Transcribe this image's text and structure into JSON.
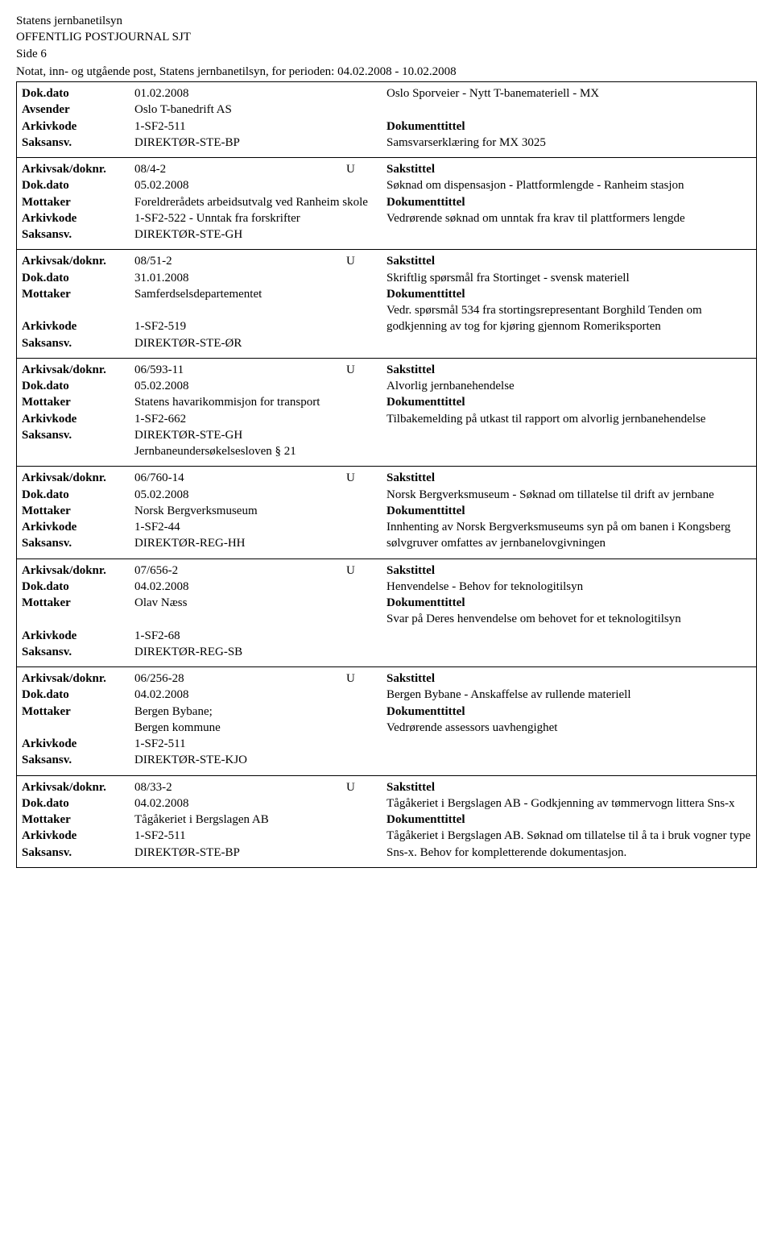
{
  "header": {
    "org": "Statens jernbanetilsyn",
    "title": "OFFENTLIG POSTJOURNAL SJT",
    "page": "Side 6",
    "subtitle": "Notat, inn- og utgående post, Statens jernbanetilsyn, for perioden: 04.02.2008 - 10.02.2008"
  },
  "labels": {
    "dokdato": "Dok.dato",
    "avsender": "Avsender",
    "mottaker": "Mottaker",
    "arkivkode": "Arkivkode",
    "saksansv": "Saksansv.",
    "arkivsak": "Arkivsak/doknr.",
    "sakstittel": "Sakstittel",
    "dokumenttittel": "Dokumenttittel"
  },
  "entries": [
    {
      "arkivsak": "",
      "dir": "",
      "dokdato": "01.02.2008",
      "party_label": "Avsender",
      "party": "Oslo T-banedrift AS",
      "arkivkode": "1-SF2-511",
      "saksansv": "DIREKTØR-STE-BP",
      "sakstittel": "Oslo Sporveier - Nytt T-banemateriell - MX",
      "dokumenttittel": "Samsvarserklæring for MX 3025",
      "header_style": true
    },
    {
      "arkivsak": "08/4-2",
      "dir": "U",
      "dokdato": "05.02.2008",
      "party_label": "Mottaker",
      "party": "Foreldrerådets arbeidsutvalg ved Ranheim skole",
      "arkivkode": "1-SF2-522 - Unntak fra forskrifter",
      "saksansv": "DIREKTØR-STE-GH",
      "sakstittel": "Søknad om dispensasjon - Plattformlengde - Ranheim stasjon",
      "dokumenttittel": "Vedrørende søknad om unntak fra krav til plattformers lengde"
    },
    {
      "arkivsak": "08/51-2",
      "dir": "U",
      "dokdato": "31.01.2008",
      "party_label": "Mottaker",
      "party": "Samferdselsdepartementet",
      "arkivkode": "1-SF2-519",
      "saksansv": "DIREKTØR-STE-ØR",
      "sakstittel": "Skriftlig spørsmål fra Stortinget - svensk materiell",
      "dokumenttittel": "Vedr. spørsmål 534 fra stortingsrepresentant Borghild Tenden om godkjenning av tog for kjøring gjennom Romeriksporten"
    },
    {
      "arkivsak": "06/593-11",
      "dir": "U",
      "dokdato": "05.02.2008",
      "party_label": "Mottaker",
      "party": "Statens havarikommisjon for transport",
      "arkivkode": "1-SF2-662",
      "saksansv": "DIREKTØR-STE-GH",
      "saksansv_extra": "Jernbaneundersøkelsesloven § 21",
      "sakstittel": "Alvorlig jernbanehendelse",
      "dokumenttittel": "Tilbakemelding på utkast til rapport om alvorlig jernbanehendelse"
    },
    {
      "arkivsak": "06/760-14",
      "dir": "U",
      "dokdato": "05.02.2008",
      "party_label": "Mottaker",
      "party": "Norsk Bergverksmuseum",
      "arkivkode": "1-SF2-44",
      "saksansv": "DIREKTØR-REG-HH",
      "sakstittel": "Norsk Bergverksmuseum - Søknad om tillatelse til drift av jernbane",
      "dokumenttittel": "Innhenting av Norsk Bergverksmuseums syn på om banen i Kongsberg sølvgruver omfattes av jernbanelovgivningen"
    },
    {
      "arkivsak": "07/656-2",
      "dir": "U",
      "dokdato": "04.02.2008",
      "party_label": "Mottaker",
      "party": "Olav Næss",
      "arkivkode": "1-SF2-68",
      "saksansv": "DIREKTØR-REG-SB",
      "sakstittel": "Henvendelse - Behov for teknologitilsyn",
      "dokumenttittel": "Svar på Deres henvendelse om behovet for et teknologitilsyn"
    },
    {
      "arkivsak": "06/256-28",
      "dir": "U",
      "dokdato": "04.02.2008",
      "party_label": "Mottaker",
      "party": "Bergen Bybane;",
      "party_extra": "Bergen kommune",
      "arkivkode": "1-SF2-511",
      "saksansv": "DIREKTØR-STE-KJO",
      "sakstittel": "Bergen Bybane - Anskaffelse av rullende materiell",
      "dokumenttittel": "Vedrørende assessors uavhengighet"
    },
    {
      "arkivsak": "08/33-2",
      "dir": "U",
      "dokdato": "04.02.2008",
      "party_label": "Mottaker",
      "party": "Tågåkeriet i Bergslagen AB",
      "arkivkode": "1-SF2-511",
      "saksansv": "DIREKTØR-STE-BP",
      "sakstittel": "Tågåkeriet i Bergslagen AB - Godkjenning av tømmervogn littera Sns-x",
      "dokumenttittel": "Tågåkeriet i Bergslagen AB. Søknad om tillatelse til å ta i bruk vogner type Sns-x. Behov for kompletterende dokumentasjon."
    }
  ]
}
